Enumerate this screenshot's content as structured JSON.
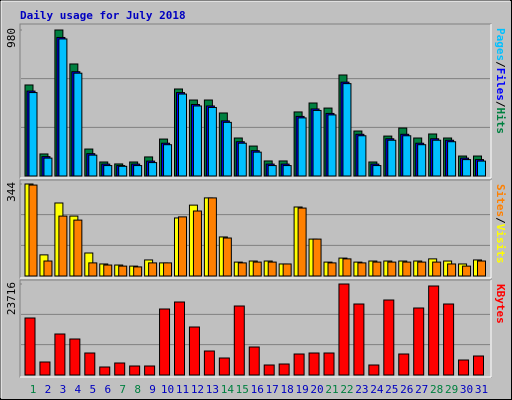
{
  "chart_data": [
    {
      "type": "bar",
      "title": "Daily usage for July 2018",
      "legend_separator": "/",
      "ylim": [
        0,
        980
      ],
      "yticks": [
        980
      ],
      "series": [
        {
          "name": "Hits",
          "color": "#008040",
          "values": [
            611,
            148,
            980,
            752,
            181,
            94,
            81,
            94,
            128,
            248,
            584,
            510,
            510,
            423,
            255,
            201,
            101,
            101,
            430,
            490,
            456,
            678,
            302,
            94,
            268,
            322,
            255,
            282,
            255,
            134,
            134
          ]
        },
        {
          "name": "Files",
          "color": "#0000ff",
          "values": [
            570,
            130,
            930,
            700,
            150,
            80,
            70,
            80,
            100,
            220,
            560,
            480,
            470,
            370,
            230,
            170,
            80,
            80,
            400,
            450,
            420,
            630,
            280,
            80,
            250,
            280,
            220,
            250,
            240,
            120,
            110
          ]
        },
        {
          "name": "Pages",
          "color": "#00c0ff",
          "values": [
            560,
            120,
            920,
            690,
            140,
            70,
            65,
            70,
            90,
            210,
            550,
            470,
            460,
            360,
            220,
            160,
            70,
            70,
            390,
            440,
            410,
            620,
            270,
            70,
            240,
            270,
            210,
            240,
            230,
            110,
            100
          ]
        }
      ]
    },
    {
      "type": "bar",
      "ylim": [
        0,
        344
      ],
      "yticks": [
        344
      ],
      "series": [
        {
          "name": "Visits",
          "color": "#ffff00",
          "values": [
            344,
            79,
            273,
            224,
            86,
            45,
            41,
            37,
            60,
            49,
            217,
            265,
            292,
            146,
            52,
            56,
            56,
            45,
            258,
            138,
            52,
            67,
            52,
            56,
            56,
            56,
            56,
            64,
            56,
            45,
            60
          ]
        },
        {
          "name": "Sites",
          "color": "#ff8000",
          "values": [
            340,
            56,
            224,
            209,
            49,
            41,
            37,
            34,
            49,
            49,
            221,
            243,
            292,
            142,
            49,
            52,
            52,
            45,
            254,
            138,
            49,
            64,
            49,
            52,
            52,
            52,
            52,
            52,
            45,
            37,
            56
          ]
        }
      ]
    },
    {
      "type": "bar",
      "ylim": [
        0,
        23716
      ],
      "yticks": [
        23716
      ],
      "categories": [
        "1",
        "2",
        "3",
        "4",
        "5",
        "6",
        "7",
        "8",
        "9",
        "10",
        "11",
        "12",
        "13",
        "14",
        "15",
        "16",
        "17",
        "18",
        "19",
        "20",
        "21",
        "22",
        "23",
        "24",
        "25",
        "26",
        "27",
        "28",
        "29",
        "30",
        "31"
      ],
      "label_color": "#0000c0",
      "highlight_color": "#008040",
      "highlighted": [
        "1",
        "7",
        "8",
        "14",
        "15",
        "21",
        "22",
        "28",
        "29"
      ],
      "series": [
        {
          "name": "KBytes",
          "color": "#ff0000",
          "values": [
            14855,
            3388,
            10685,
            9382,
            5733,
            2085,
            3127,
            2345,
            2345,
            17200,
            19024,
            12509,
            6255,
            4430,
            17982,
            7297,
            2606,
            2867,
            5473,
            5733,
            5733,
            23716,
            18503,
            2606,
            19546,
            5473,
            17461,
            23195,
            18503,
            3909,
            4952
          ]
        }
      ]
    }
  ]
}
